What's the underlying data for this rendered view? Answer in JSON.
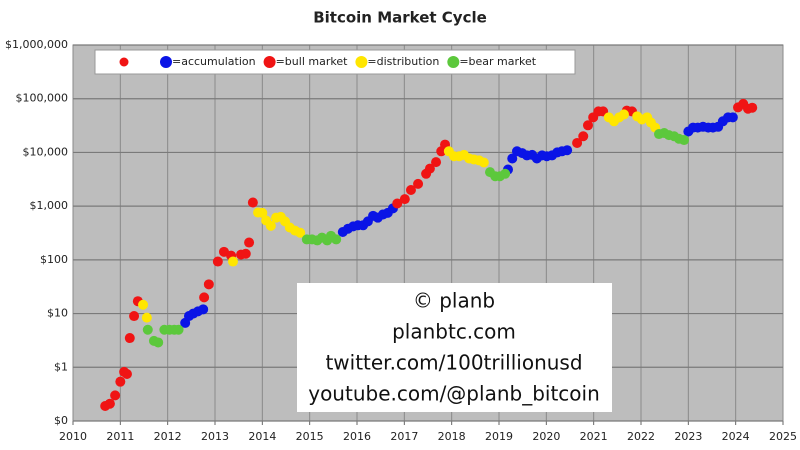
{
  "chart_data": {
    "type": "scatter",
    "title": "Bitcoin Market Cycle",
    "log_scale_y": true,
    "grid": true,
    "legend_position": "top",
    "xlim": [
      2010,
      2025
    ],
    "xticks": [
      2010,
      2011,
      2012,
      2013,
      2014,
      2015,
      2016,
      2017,
      2018,
      2019,
      2020,
      2021,
      2022,
      2023,
      2024,
      2025
    ],
    "ylim": [
      0.1,
      1000000
    ],
    "yticks": [
      {
        "value": 0.1,
        "label": "$0"
      },
      {
        "value": 1,
        "label": "$1"
      },
      {
        "value": 10,
        "label": "$10"
      },
      {
        "value": 100,
        "label": "$100"
      },
      {
        "value": 1000,
        "label": "$1,000"
      },
      {
        "value": 10000,
        "label": "$10,000"
      },
      {
        "value": 100000,
        "label": "$100,000"
      },
      {
        "value": 1000000,
        "label": "$1,000,000"
      }
    ],
    "annotations": [
      "© planb",
      "planbtc.com",
      "twitter.com/100trillionusd",
      "youtube.com/@planb_bitcoin"
    ],
    "series": [
      {
        "name": "=accumulation",
        "color": "#0a14e6",
        "x": [
          2012.37,
          2012.45,
          2012.54,
          2012.64,
          2012.75,
          2015.7,
          2015.81,
          2015.92,
          2016.02,
          2016.13,
          2016.23,
          2016.34,
          2016.44,
          2016.55,
          2016.65,
          2016.76,
          2019.19,
          2019.28,
          2019.38,
          2019.49,
          2019.59,
          2019.7,
          2019.8,
          2019.91,
          2020.01,
          2020.12,
          2020.23,
          2020.33,
          2020.44,
          2023.0,
          2023.1,
          2023.2,
          2023.31,
          2023.42,
          2023.52,
          2023.63,
          2023.73,
          2023.84,
          2023.94
        ],
        "values": [
          6.7,
          9,
          10,
          11,
          12,
          330,
          380,
          420,
          440,
          440,
          520,
          660,
          610,
          700,
          750,
          910,
          4800,
          7700,
          10500,
          9700,
          8800,
          9000,
          7700,
          8800,
          8500,
          8800,
          10000,
          10500,
          11000,
          24500,
          29000,
          29000,
          30000,
          29000,
          29000,
          30000,
          38000,
          45000,
          45000
        ]
      },
      {
        "name": "=bull market",
        "color": "#f01414",
        "x": [
          2010.68,
          2010.78,
          2010.89,
          2011.0,
          2011.08,
          2011.14,
          2011.2,
          2011.29,
          2011.37,
          2012.77,
          2012.87,
          2013.06,
          2013.19,
          2013.34,
          2013.55,
          2013.65,
          2013.72,
          2013.8,
          2016.85,
          2017.01,
          2017.14,
          2017.29,
          2017.46,
          2017.54,
          2017.67,
          2017.78,
          2017.86,
          2020.65,
          2020.78,
          2020.88,
          2020.99,
          2021.1,
          2021.2,
          2021.7,
          2021.81,
          2024.05,
          2024.16,
          2024.26,
          2024.35
        ],
        "values": [
          0.19,
          0.21,
          0.3,
          0.54,
          0.82,
          0.75,
          3.5,
          9,
          17,
          20,
          35,
          93,
          141,
          120,
          125,
          130,
          210,
          1170,
          1120,
          1350,
          2000,
          2600,
          4000,
          5000,
          6600,
          10500,
          14000,
          15000,
          20000,
          32000,
          45000,
          58000,
          58000,
          60000,
          58000,
          69000,
          80000,
          65000,
          68000
        ]
      },
      {
        "name": "=distribution",
        "color": "#ffe600",
        "x": [
          2011.48,
          2011.56,
          2013.38,
          2013.91,
          2014.0,
          2014.08,
          2014.18,
          2014.29,
          2014.39,
          2014.48,
          2014.58,
          2014.69,
          2014.8,
          2017.94,
          2018.05,
          2018.16,
          2018.26,
          2018.37,
          2018.47,
          2018.58,
          2018.68,
          2021.32,
          2021.43,
          2021.54,
          2021.64,
          2021.92,
          2022.02,
          2022.13,
          2022.21,
          2022.3
        ],
        "values": [
          14.6,
          8.4,
          93,
          760,
          750,
          540,
          430,
          610,
          630,
          520,
          400,
          350,
          320,
          10500,
          8500,
          8500,
          9000,
          7700,
          7400,
          7100,
          6500,
          45000,
          38000,
          45000,
          51000,
          47000,
          41000,
          45000,
          36000,
          29000
        ]
      },
      {
        "name": "=bear market",
        "color": "#5cc83c",
        "x": [
          2011.58,
          2011.71,
          2011.8,
          2011.93,
          2012.04,
          2012.14,
          2012.23,
          2014.94,
          2015.05,
          2015.16,
          2015.26,
          2015.37,
          2015.45,
          2015.56,
          2018.81,
          2018.92,
          2019.02,
          2019.13,
          2022.38,
          2022.49,
          2022.59,
          2022.7,
          2022.8,
          2022.91
        ],
        "values": [
          5,
          3.1,
          2.9,
          5,
          5,
          5,
          5,
          240,
          240,
          230,
          260,
          230,
          280,
          240,
          4300,
          3600,
          3600,
          4000,
          22000,
          23000,
          21000,
          20000,
          18000,
          17000
        ]
      }
    ]
  }
}
